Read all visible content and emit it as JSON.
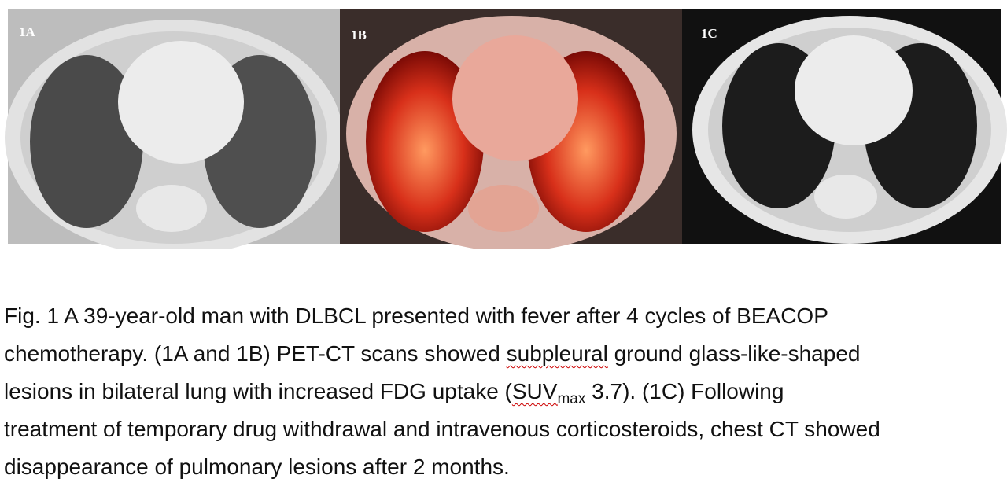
{
  "figure": {
    "panels": [
      {
        "label": "1A"
      },
      {
        "label": "1B"
      },
      {
        "label": "1C"
      }
    ]
  },
  "caption": {
    "lines": [
      [
        "Fig. 1 A 39-year-old man with DLBCL presented with fever after 4 cycles of BEACOP"
      ],
      [
        "chemotherapy. (1A and 1B) PET-CT scans showed ",
        "subpleural",
        " ground glass-like-shaped"
      ],
      [
        "lesions in bilateral lung with increased FDG uptake (",
        "SUV",
        "max",
        " 3.7). (1C) Following"
      ],
      [
        "treatment of temporary drug withdrawal and intravenous corticosteroids, chest CT showed"
      ],
      [
        "disappearance of pulmonary lesions after 2 months."
      ]
    ]
  }
}
